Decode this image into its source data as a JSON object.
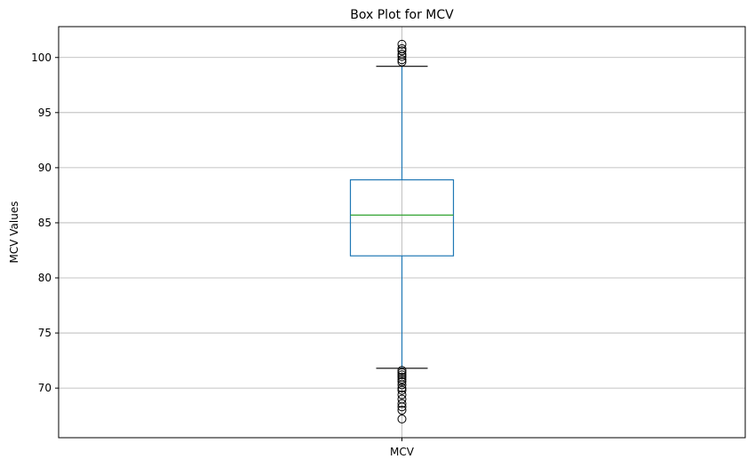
{
  "chart_data": {
    "type": "box",
    "title": "Box Plot for MCV",
    "xlabel": "",
    "ylabel": "MCV Values",
    "categories": [
      "MCV"
    ],
    "ylim": [
      65.5,
      102.8
    ],
    "yticks": [
      70,
      75,
      80,
      85,
      90,
      95,
      100
    ],
    "grid": true,
    "box": {
      "category": "MCV",
      "q1": 82.0,
      "median": 85.7,
      "q3": 88.9,
      "whisker_low": 71.8,
      "whisker_high": 99.2
    },
    "outliers": [
      99.6,
      99.8,
      100.1,
      100.3,
      100.6,
      100.8,
      101.2,
      71.6,
      71.4,
      71.2,
      71.0,
      70.8,
      70.6,
      70.3,
      70.0,
      69.8,
      69.4,
      69.0,
      68.6,
      68.3,
      68.0,
      67.2
    ],
    "colors": {
      "box": "#1f77b4",
      "whisker": "#1f77b4",
      "median": "#2ca02c",
      "cap": "#000000",
      "outlier": "#000000",
      "grid": "#b0b0b0"
    }
  }
}
